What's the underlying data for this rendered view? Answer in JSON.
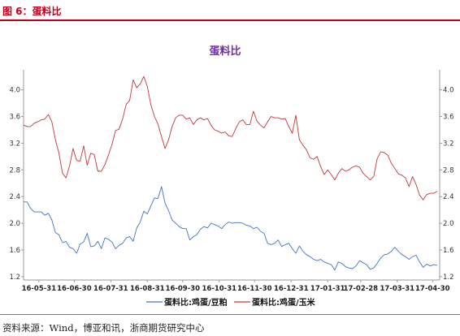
{
  "caption": "图 6：蛋料比",
  "source": "资料来源：Wind，博亚和讯，浙商期货研究中心",
  "chart_data": {
    "type": "line",
    "title": "蛋料比",
    "x_tick_labels": [
      "16-05-31",
      "16-06-30",
      "16-07-31",
      "16-08-31",
      "16-09-30",
      "16-10-31",
      "16-11-30",
      "16-12-31",
      "17-01-31",
      "17-02-28",
      "17-03-31",
      "17-04-30"
    ],
    "x_range": [
      "2016-05-18",
      "2017-05-06"
    ],
    "ylim": [
      1.15,
      4.3
    ],
    "yticks": [
      1.2,
      1.6,
      2.0,
      2.4,
      2.8,
      3.2,
      3.6,
      4.0
    ],
    "grid": false,
    "legend_position": "bottom",
    "colors": {
      "title": "#7030a0",
      "caption": "#c0001b",
      "soy": "#4472c4",
      "corn": "#c0393b",
      "axis": "#999999"
    },
    "series": [
      {
        "name": "蛋料比:鸡蛋/豆粕",
        "x": [
          "2016-05-18",
          "2016-05-21",
          "2016-05-24",
          "2016-05-27",
          "2016-05-30",
          "2016-06-02",
          "2016-06-05",
          "2016-06-08",
          "2016-06-11",
          "2016-06-14",
          "2016-06-17",
          "2016-06-20",
          "2016-06-23",
          "2016-06-26",
          "2016-06-29",
          "2016-07-02",
          "2016-07-05",
          "2016-07-08",
          "2016-07-11",
          "2016-07-14",
          "2016-07-17",
          "2016-07-20",
          "2016-07-23",
          "2016-07-26",
          "2016-07-29",
          "2016-08-01",
          "2016-08-04",
          "2016-08-07",
          "2016-08-10",
          "2016-08-13",
          "2016-08-16",
          "2016-08-19",
          "2016-08-22",
          "2016-08-25",
          "2016-08-28",
          "2016-08-31",
          "2016-09-03",
          "2016-09-06",
          "2016-09-09",
          "2016-09-12",
          "2016-09-15",
          "2016-09-18",
          "2016-09-21",
          "2016-09-24",
          "2016-09-27",
          "2016-09-30",
          "2016-10-03",
          "2016-10-06",
          "2016-10-09",
          "2016-10-12",
          "2016-10-15",
          "2016-10-18",
          "2016-10-21",
          "2016-10-24",
          "2016-10-27",
          "2016-10-30",
          "2016-11-02",
          "2016-11-05",
          "2016-11-08",
          "2016-11-11",
          "2016-11-14",
          "2016-11-17",
          "2016-11-20",
          "2016-11-23",
          "2016-11-26",
          "2016-11-29",
          "2016-12-02",
          "2016-12-05",
          "2016-12-08",
          "2016-12-11",
          "2016-12-14",
          "2016-12-17",
          "2016-12-20",
          "2016-12-23",
          "2016-12-26",
          "2016-12-29",
          "2017-01-01",
          "2017-01-04",
          "2017-01-07",
          "2017-01-10",
          "2017-01-13",
          "2017-01-16",
          "2017-01-19",
          "2017-01-22",
          "2017-01-25",
          "2017-01-28",
          "2017-01-31",
          "2017-02-03",
          "2017-02-06",
          "2017-02-09",
          "2017-02-12",
          "2017-02-15",
          "2017-02-18",
          "2017-02-21",
          "2017-02-24",
          "2017-02-27",
          "2017-03-02",
          "2017-03-05",
          "2017-03-08",
          "2017-03-11",
          "2017-03-14",
          "2017-03-17",
          "2017-03-20",
          "2017-03-23",
          "2017-03-26",
          "2017-03-29",
          "2017-04-01",
          "2017-04-04",
          "2017-04-07",
          "2017-04-10",
          "2017-04-13",
          "2017-04-16",
          "2017-04-19",
          "2017-04-22",
          "2017-04-25",
          "2017-04-28",
          "2017-05-01",
          "2017-05-04"
        ],
        "values": [
          2.32,
          2.32,
          2.22,
          2.17,
          2.17,
          2.17,
          2.12,
          2.15,
          2.05,
          1.86,
          1.83,
          1.71,
          1.73,
          1.64,
          1.62,
          1.55,
          1.69,
          1.72,
          1.85,
          1.65,
          1.66,
          1.73,
          1.62,
          1.78,
          1.76,
          1.72,
          1.62,
          1.67,
          1.7,
          1.78,
          1.8,
          1.73,
          1.93,
          2.02,
          2.18,
          2.14,
          2.26,
          2.38,
          2.37,
          2.55,
          2.3,
          2.19,
          2.05,
          2.0,
          1.95,
          1.92,
          1.92,
          1.75,
          1.8,
          1.83,
          1.91,
          1.95,
          1.93,
          2.0,
          1.98,
          1.96,
          1.92,
          1.98,
          2.02,
          2.0,
          2.01,
          2.01,
          2.0,
          1.97,
          1.96,
          1.92,
          1.94,
          1.88,
          1.85,
          1.7,
          1.68,
          1.7,
          1.75,
          1.65,
          1.68,
          1.7,
          1.62,
          1.55,
          1.66,
          1.58,
          1.53,
          1.5,
          1.46,
          1.44,
          1.46,
          1.42,
          1.4,
          1.38,
          1.3,
          1.42,
          1.4,
          1.35,
          1.33,
          1.32,
          1.36,
          1.44,
          1.41,
          1.38,
          1.31,
          1.33,
          1.4,
          1.48,
          1.53,
          1.54,
          1.58,
          1.64,
          1.58,
          1.53,
          1.5,
          1.46,
          1.5,
          1.52,
          1.42,
          1.34,
          1.39,
          1.36,
          1.38,
          1.37
        ]
      },
      {
        "name": "蛋料比:鸡蛋/玉米",
        "x": [
          "2016-05-18",
          "2016-05-21",
          "2016-05-24",
          "2016-05-27",
          "2016-05-30",
          "2016-06-02",
          "2016-06-05",
          "2016-06-08",
          "2016-06-11",
          "2016-06-14",
          "2016-06-17",
          "2016-06-20",
          "2016-06-23",
          "2016-06-26",
          "2016-06-29",
          "2016-07-02",
          "2016-07-05",
          "2016-07-08",
          "2016-07-11",
          "2016-07-14",
          "2016-07-17",
          "2016-07-20",
          "2016-07-23",
          "2016-07-26",
          "2016-07-29",
          "2016-08-01",
          "2016-08-04",
          "2016-08-07",
          "2016-08-10",
          "2016-08-13",
          "2016-08-16",
          "2016-08-19",
          "2016-08-22",
          "2016-08-25",
          "2016-08-28",
          "2016-08-31",
          "2016-09-03",
          "2016-09-06",
          "2016-09-09",
          "2016-09-12",
          "2016-09-15",
          "2016-09-18",
          "2016-09-21",
          "2016-09-24",
          "2016-09-27",
          "2016-09-30",
          "2016-10-03",
          "2016-10-06",
          "2016-10-09",
          "2016-10-12",
          "2016-10-15",
          "2016-10-18",
          "2016-10-21",
          "2016-10-24",
          "2016-10-27",
          "2016-10-30",
          "2016-11-02",
          "2016-11-05",
          "2016-11-08",
          "2016-11-11",
          "2016-11-14",
          "2016-11-17",
          "2016-11-20",
          "2016-11-23",
          "2016-11-26",
          "2016-11-29",
          "2016-12-02",
          "2016-12-05",
          "2016-12-08",
          "2016-12-11",
          "2016-12-14",
          "2016-12-17",
          "2016-12-20",
          "2016-12-23",
          "2016-12-26",
          "2016-12-29",
          "2017-01-01",
          "2017-01-04",
          "2017-01-07",
          "2017-01-10",
          "2017-01-13",
          "2017-01-16",
          "2017-01-19",
          "2017-01-22",
          "2017-01-25",
          "2017-01-28",
          "2017-01-31",
          "2017-02-03",
          "2017-02-06",
          "2017-02-09",
          "2017-02-12",
          "2017-02-15",
          "2017-02-18",
          "2017-02-21",
          "2017-02-24",
          "2017-02-27",
          "2017-03-02",
          "2017-03-05",
          "2017-03-08",
          "2017-03-11",
          "2017-03-14",
          "2017-03-17",
          "2017-03-20",
          "2017-03-23",
          "2017-03-26",
          "2017-03-29",
          "2017-04-01",
          "2017-04-04",
          "2017-04-07",
          "2017-04-10",
          "2017-04-13",
          "2017-04-16",
          "2017-04-19",
          "2017-04-22",
          "2017-04-25",
          "2017-04-28",
          "2017-05-01",
          "2017-05-04"
        ],
        "values": [
          3.47,
          3.45,
          3.45,
          3.5,
          3.52,
          3.55,
          3.56,
          3.63,
          3.52,
          3.25,
          3.05,
          2.75,
          2.68,
          2.86,
          3.12,
          2.94,
          2.93,
          3.16,
          2.87,
          3.05,
          3.03,
          2.78,
          2.78,
          2.88,
          3.02,
          3.18,
          3.39,
          3.41,
          3.56,
          3.78,
          3.84,
          4.15,
          4.03,
          4.09,
          4.2,
          4.05,
          3.78,
          3.6,
          3.49,
          3.3,
          3.12,
          3.25,
          3.45,
          3.58,
          3.62,
          3.62,
          3.56,
          3.58,
          3.48,
          3.55,
          3.58,
          3.55,
          3.57,
          3.47,
          3.4,
          3.38,
          3.35,
          3.37,
          3.31,
          3.3,
          3.42,
          3.52,
          3.55,
          3.48,
          3.48,
          3.68,
          3.53,
          3.47,
          3.43,
          3.52,
          3.6,
          3.58,
          3.58,
          3.56,
          3.57,
          3.45,
          3.35,
          3.62,
          3.25,
          3.17,
          3.1,
          2.98,
          2.96,
          3.0,
          2.85,
          2.73,
          2.8,
          2.73,
          2.65,
          2.75,
          2.82,
          2.78,
          2.8,
          2.84,
          2.86,
          2.84,
          2.75,
          2.7,
          2.65,
          2.7,
          2.97,
          3.07,
          3.06,
          3.02,
          2.9,
          2.82,
          2.74,
          2.72,
          2.68,
          2.55,
          2.7,
          2.58,
          2.42,
          2.35,
          2.43,
          2.45,
          2.45,
          2.48
        ]
      }
    ]
  }
}
